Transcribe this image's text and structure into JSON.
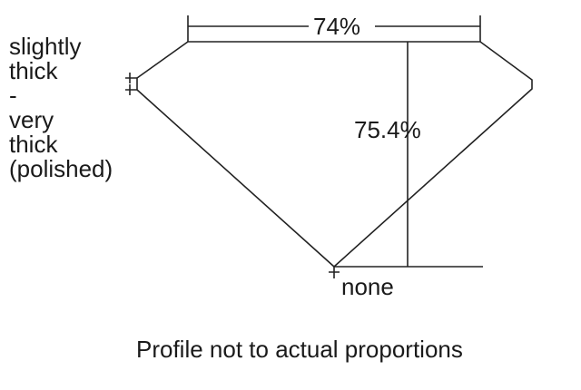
{
  "girdle_label_lines": [
    "slightly",
    "thick",
    "-",
    "very",
    "thick",
    "(polished)"
  ],
  "table_percent": "74%",
  "depth_percent": "75.4%",
  "culet_label": "none",
  "caption": "Profile not to actual proportions"
}
